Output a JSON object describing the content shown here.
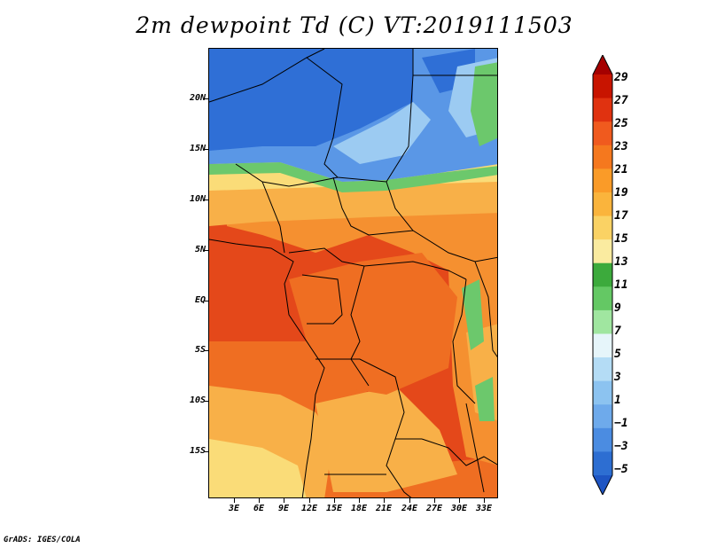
{
  "title": "2m dewpoint Td (C) VT:2019111503",
  "credit": "GrADS: IGES/COLA",
  "latitude_labels": [
    "20N",
    "15N",
    "10N",
    "5N",
    "EQ",
    "5S",
    "10S",
    "15S"
  ],
  "longitude_labels": [
    "3E",
    "6E",
    "9E",
    "12E",
    "15E",
    "18E",
    "21E",
    "24E",
    "27E",
    "30E",
    "33E"
  ],
  "colorbar": {
    "labels": [
      "29",
      "27",
      "25",
      "23",
      "21",
      "19",
      "17",
      "15",
      "13",
      "11",
      "9",
      "7",
      "5",
      "3",
      "1",
      "−1",
      "−3",
      "−5"
    ],
    "colors": [
      "#a50000",
      "#c81400",
      "#e03210",
      "#f05a1e",
      "#f5781e",
      "#fa9b28",
      "#fab43c",
      "#fad264",
      "#faeba0",
      "#3caa3c",
      "#64c864",
      "#a0e6a0",
      "#e6f5fa",
      "#b4dcf5",
      "#8cc3f0",
      "#6eaaeb",
      "#4b8ce1",
      "#2d6ed2",
      "#1e55c3"
    ]
  },
  "map_colors": {
    "very_dry": "#2f6fd6",
    "dry": "#5a97e6",
    "dry_light": "#9ccbf2",
    "moist_line": "#6cc86c",
    "pale": "#fadc78",
    "light_orange": "#f8b048",
    "orange": "#f59030",
    "deep_orange": "#ef6e22",
    "red_orange": "#e4481a"
  }
}
